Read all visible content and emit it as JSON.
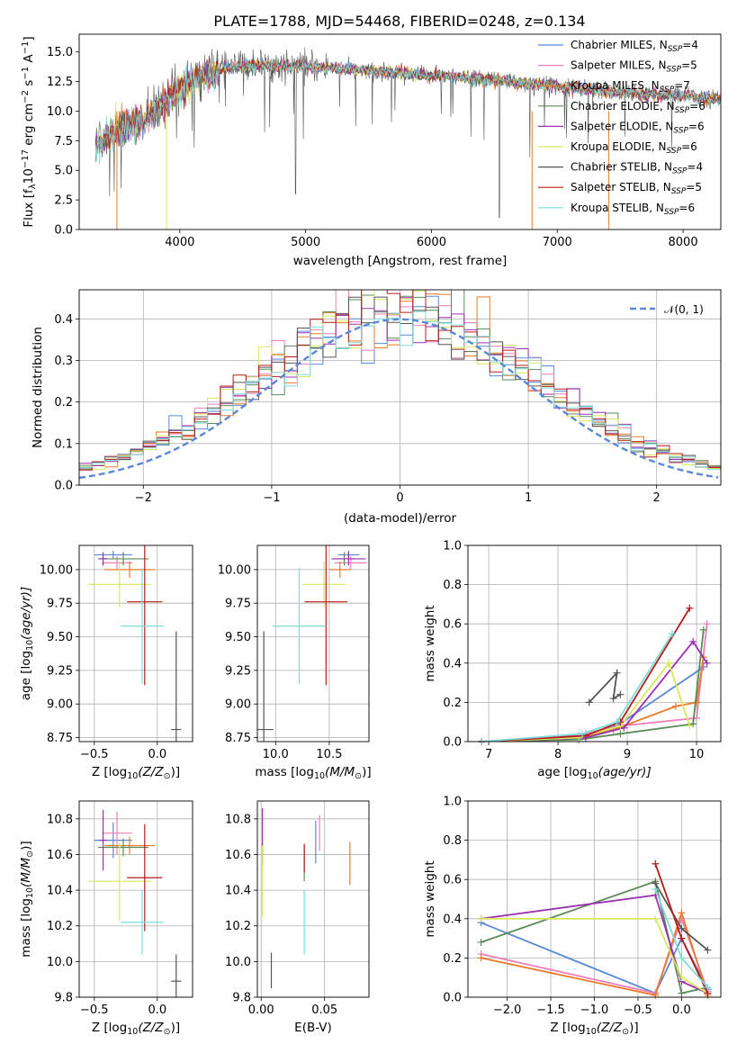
{
  "figure_title": "PLATE=1788, MJD=54468, FIBERID=0248, z=0.134",
  "colors": {
    "Chabrier MILES": "#5b87d9",
    "Salpeter MILES": "#ee7fb8",
    "Kroupa MILES": "#e87a2a",
    "Chabrier ELODIE": "#5a8a5a",
    "Salpeter ELODIE": "#9b30b0",
    "Kroupa ELODIE": "#d7e85a",
    "Chabrier STELIB": "#555555",
    "Salpeter STELIB": "#b71c1c",
    "Kroupa STELIB": "#7fdada",
    "gaussian": "#5b87d9",
    "grid": "#b0b0b0"
  },
  "chart_data": [
    {
      "id": "spectrum",
      "type": "line",
      "title": "PLATE=1788, MJD=54468, FIBERID=0248, z=0.134",
      "xlabel": "wavelength [Angstrom, rest frame]",
      "ylabel_main": "Flux [f",
      "ylabel_sub": "λ",
      "ylabel_rest": "10",
      "ylabel_exp1": "−17",
      "ylabel_mid": " erg cm",
      "ylabel_exp2": "−2",
      "ylabel_s": " s",
      "ylabel_exp3": "−1",
      "ylabel_end": " A",
      "ylabel_exp4": "−1",
      "ylabel_close": "]",
      "xlim": [
        3200,
        8300
      ],
      "ylim": [
        0,
        16.5
      ],
      "xticks": [
        "4000",
        "5000",
        "6000",
        "7000",
        "8000"
      ],
      "yticks": [
        "0.0",
        "2.5",
        "5.0",
        "7.5",
        "10.0",
        "12.5",
        "15.0"
      ],
      "grid": false,
      "legend_position": "top-right",
      "legend": [
        {
          "label": "Chabrier MILES, N",
          "sub": "SSP",
          "val": "=4"
        },
        {
          "label": "Salpeter MILES, N",
          "sub": "SSP",
          "val": "=5"
        },
        {
          "label": "Kroupa MILES, N",
          "sub": "SSP",
          "val": "=7"
        },
        {
          "label": "Chabrier ELODIE, N",
          "sub": "SSP",
          "val": "=6"
        },
        {
          "label": "Salpeter ELODIE, N",
          "sub": "SSP",
          "val": "=6"
        },
        {
          "label": "Kroupa ELODIE, N",
          "sub": "SSP",
          "val": "=6"
        },
        {
          "label": "Chabrier STELIB, N",
          "sub": "SSP",
          "val": "=4"
        },
        {
          "label": "Salpeter STELIB, N",
          "sub": "SSP",
          "val": "=5"
        },
        {
          "label": "Kroupa STELIB, N",
          "sub": "SSP",
          "val": "=6"
        }
      ],
      "continuum": {
        "x": [
          3330,
          3500,
          3650,
          3800,
          3950,
          4100,
          4300,
          4600,
          5000,
          5500,
          6000,
          6500,
          7000,
          7500,
          8000,
          8300
        ],
        "y": [
          7.2,
          8.5,
          8.8,
          10.0,
          11.5,
          12.5,
          13.5,
          13.9,
          13.8,
          13.4,
          13.0,
          12.6,
          12.1,
          11.6,
          11.3,
          11.0
        ]
      },
      "spectrum_range": [
        3330,
        8300
      ]
    },
    {
      "id": "residuals",
      "type": "area",
      "xlabel": "(data-model)/error",
      "ylabel": "Normed distribution",
      "xlim": [
        -2.5,
        2.5
      ],
      "ylim": [
        0,
        0.47
      ],
      "xticks": [
        "−2",
        "−1",
        "0",
        "1",
        "2"
      ],
      "yticks": [
        "0.0",
        "0.1",
        "0.2",
        "0.3",
        "0.4"
      ],
      "grid": true,
      "legend_position": "top-right",
      "legend_label": "𝒩(0, 1)",
      "bin_width": 0.1
    },
    {
      "id": "age-vs-Z",
      "type": "scatter",
      "xlabel_main": "Z [log",
      "xlabel_sub": "10",
      "xlabel_arg": "(Z/Z",
      "xlabel_sun": "⊙",
      "xlabel_close": ")]",
      "ylabel_main": "age  [log",
      "ylabel_sub": "10",
      "ylabel_arg": "(age/yr)]",
      "xlim": [
        -0.62,
        0.28
      ],
      "ylim": [
        8.72,
        10.18
      ],
      "xticks": [
        "−0.5",
        "0.0"
      ],
      "yticks": [
        "8.75",
        "9.00",
        "9.25",
        "9.50",
        "9.75",
        "10.00"
      ],
      "grid": true,
      "points": [
        {
          "model": "Chabrier MILES",
          "x": -0.35,
          "xerr": 0.15,
          "y": 10.11,
          "yerr": 0.03
        },
        {
          "model": "Salpeter MILES",
          "x": -0.32,
          "xerr": 0.12,
          "y": 10.05,
          "yerr": 0.05
        },
        {
          "model": "Kroupa MILES",
          "x": -0.22,
          "xerr": 0.2,
          "y": 10.0,
          "yerr": 0.06
        },
        {
          "model": "Chabrier ELODIE",
          "x": -0.27,
          "xerr": 0.2,
          "y": 10.08,
          "yerr": 0.05
        },
        {
          "model": "Salpeter ELODIE",
          "x": -0.43,
          "xerr": 0.03,
          "y": 10.08,
          "yerr": 0.05
        },
        {
          "model": "Kroupa ELODIE",
          "x": -0.3,
          "xerr": 0.25,
          "y": 9.89,
          "yerr": 0.17
        },
        {
          "model": "Chabrier STELIB",
          "x": 0.15,
          "xerr": 0.04,
          "y": 8.81,
          "yerr": 0.73
        },
        {
          "model": "Salpeter STELIB",
          "x": -0.1,
          "xerr": 0.14,
          "y": 9.76,
          "yerr": 0.62
        },
        {
          "model": "Kroupa STELIB",
          "x": -0.12,
          "xerr": 0.17,
          "y": 9.58,
          "yerr": 0.43
        }
      ]
    },
    {
      "id": "age-vs-mass",
      "type": "scatter",
      "xlabel_main": "mass [log",
      "xlabel_sub": "10",
      "xlabel_arg": "(M/M",
      "xlabel_sun": "⊙",
      "xlabel_close": ")]",
      "xlim": [
        9.83,
        10.87
      ],
      "ylim": [
        8.72,
        10.18
      ],
      "xticks": [
        "10.0",
        "10.5"
      ],
      "yticks": [
        "8.75",
        "9.00",
        "9.25",
        "9.50",
        "9.75",
        "10.00"
      ],
      "grid": true,
      "points": [
        {
          "model": "Chabrier MILES",
          "x": 10.68,
          "xerr": 0.1,
          "y": 10.11,
          "yerr": 0.03
        },
        {
          "model": "Salpeter MILES",
          "x": 10.7,
          "xerr": 0.15,
          "y": 10.05,
          "yerr": 0.05
        },
        {
          "model": "Kroupa MILES",
          "x": 10.6,
          "xerr": 0.1,
          "y": 10.0,
          "yerr": 0.06
        },
        {
          "model": "Chabrier ELODIE",
          "x": 10.64,
          "xerr": 0.1,
          "y": 10.08,
          "yerr": 0.05
        },
        {
          "model": "Salpeter ELODIE",
          "x": 10.68,
          "xerr": 0.16,
          "y": 10.08,
          "yerr": 0.05
        },
        {
          "model": "Kroupa ELODIE",
          "x": 10.45,
          "xerr": 0.2,
          "y": 9.89,
          "yerr": 0.17
        },
        {
          "model": "Chabrier STELIB",
          "x": 9.89,
          "xerr": 0.09,
          "y": 8.81,
          "yerr": 0.73
        },
        {
          "model": "Salpeter STELIB",
          "x": 10.47,
          "xerr": 0.2,
          "y": 9.76,
          "yerr": 0.62
        },
        {
          "model": "Kroupa STELIB",
          "x": 10.22,
          "xerr": 0.25,
          "y": 9.58,
          "yerr": 0.43
        }
      ]
    },
    {
      "id": "weight-vs-age",
      "type": "line",
      "xlabel_main": "age  [log",
      "xlabel_sub": "10",
      "xlabel_arg": "(age/yr)]",
      "ylabel": "mass weight",
      "xlim": [
        6.7,
        10.35
      ],
      "ylim": [
        0,
        1
      ],
      "xticks": [
        "7",
        "8",
        "9",
        "10"
      ],
      "yticks": [
        "0.0",
        "0.2",
        "0.4",
        "0.6",
        "0.8",
        "1.0"
      ],
      "grid": true,
      "series": [
        {
          "model": "Chabrier MILES",
          "x": [
            6.9,
            8.3,
            8.85,
            10.1
          ],
          "y": [
            0.0,
            0.03,
            0.08,
            0.38
          ]
        },
        {
          "model": "Salpeter MILES",
          "x": [
            6.9,
            8.4,
            8.9,
            10.0,
            10.15
          ],
          "y": [
            0.0,
            0.04,
            0.08,
            0.12,
            0.6
          ]
        },
        {
          "model": "Kroupa MILES",
          "x": [
            6.9,
            8.3,
            8.8,
            9.7,
            10.0,
            10.1
          ],
          "y": [
            0.0,
            0.02,
            0.06,
            0.18,
            0.2,
            0.43
          ]
        },
        {
          "model": "Chabrier ELODIE",
          "x": [
            6.9,
            8.3,
            8.9,
            9.95,
            10.1
          ],
          "y": [
            0.0,
            0.01,
            0.04,
            0.09,
            0.57
          ]
        },
        {
          "model": "Salpeter ELODIE",
          "x": [
            6.9,
            8.4,
            8.95,
            9.95,
            10.15
          ],
          "y": [
            0.0,
            0.02,
            0.07,
            0.51,
            0.4
          ]
        },
        {
          "model": "Kroupa ELODIE",
          "x": [
            6.9,
            8.3,
            8.9,
            9.6,
            9.9
          ],
          "y": [
            0.0,
            0.02,
            0.08,
            0.4,
            0.08
          ]
        },
        {
          "model": "Chabrier STELIB",
          "x": [
            8.45,
            8.85,
            8.8,
            8.9
          ],
          "y": [
            0.2,
            0.35,
            0.22,
            0.24
          ]
        },
        {
          "model": "Salpeter STELIB",
          "x": [
            6.9,
            8.4,
            8.9,
            9.9
          ],
          "y": [
            0.0,
            0.03,
            0.1,
            0.68
          ]
        },
        {
          "model": "Kroupa STELIB",
          "x": [
            6.9,
            8.35,
            8.85,
            9.65
          ],
          "y": [
            0.0,
            0.04,
            0.1,
            0.55
          ]
        }
      ]
    },
    {
      "id": "mass-vs-Z",
      "type": "scatter",
      "xlabel_main": "Z [log",
      "xlabel_sub": "10",
      "xlabel_arg": "(Z/Z",
      "xlabel_sun": "⊙",
      "xlabel_close": ")]",
      "ylabel_main": "mass [log",
      "ylabel_sub": "10",
      "ylabel_arg": "(M/M",
      "ylabel_sun": "⊙",
      "ylabel_close": ")]",
      "xlim": [
        -0.62,
        0.28
      ],
      "ylim": [
        9.8,
        10.9
      ],
      "xticks": [
        "−0.5",
        "0.0"
      ],
      "yticks": [
        "9.8",
        "10.0",
        "10.2",
        "10.4",
        "10.6",
        "10.8"
      ],
      "grid": true,
      "points": [
        {
          "model": "Chabrier MILES",
          "x": -0.35,
          "xerr": 0.15,
          "y": 10.68,
          "yerr": 0.1
        },
        {
          "model": "Salpeter MILES",
          "x": -0.32,
          "xerr": 0.12,
          "y": 10.72,
          "yerr": 0.12
        },
        {
          "model": "Kroupa MILES",
          "x": -0.22,
          "xerr": 0.2,
          "y": 10.65,
          "yerr": 0.05
        },
        {
          "model": "Chabrier ELODIE",
          "x": -0.27,
          "xerr": 0.2,
          "y": 10.64,
          "yerr": 0.05
        },
        {
          "model": "Salpeter ELODIE",
          "x": -0.43,
          "xerr": 0.03,
          "y": 10.68,
          "yerr": 0.17
        },
        {
          "model": "Kroupa ELODIE",
          "x": -0.3,
          "xerr": 0.25,
          "y": 10.45,
          "yerr": 0.22
        },
        {
          "model": "Chabrier STELIB",
          "x": 0.15,
          "xerr": 0.04,
          "y": 9.89,
          "yerr": 0.15
        },
        {
          "model": "Salpeter STELIB",
          "x": -0.1,
          "xerr": 0.14,
          "y": 10.47,
          "yerr": 0.3
        },
        {
          "model": "Kroupa STELIB",
          "x": -0.12,
          "xerr": 0.17,
          "y": 10.22,
          "yerr": 0.18
        }
      ]
    },
    {
      "id": "mass-vs-ebv",
      "type": "scatter",
      "xlabel": "E(B-V)",
      "xlim": [
        -0.003,
        0.085
      ],
      "ylim": [
        9.8,
        10.9
      ],
      "xticks": [
        "0.00",
        "0.05"
      ],
      "yticks": [
        "9.8",
        "10.0",
        "10.2",
        "10.4",
        "10.6",
        "10.8"
      ],
      "grid": true,
      "points": [
        {
          "model": "Chabrier MILES",
          "x": 0.043,
          "y": 10.67,
          "yerr": 0.12
        },
        {
          "model": "Salpeter MILES",
          "x": 0.046,
          "y": 10.72,
          "yerr": 0.1
        },
        {
          "model": "Kroupa MILES",
          "x": 0.07,
          "y": 10.55,
          "yerr": 0.12
        },
        {
          "model": "Chabrier ELODIE",
          "x": 0.034,
          "y": 10.55,
          "yerr": 0.1
        },
        {
          "model": "Salpeter ELODIE",
          "x": 0.001,
          "y": 10.7,
          "yerr": 0.16
        },
        {
          "model": "Kroupa ELODIE",
          "x": 0.001,
          "y": 10.45,
          "yerr": 0.2
        },
        {
          "model": "Chabrier STELIB",
          "x": 0.008,
          "y": 9.95,
          "yerr": 0.1
        },
        {
          "model": "Salpeter STELIB",
          "x": 0.034,
          "y": 10.58,
          "yerr": 0.08
        },
        {
          "model": "Kroupa STELIB",
          "x": 0.034,
          "y": 10.22,
          "yerr": 0.18
        }
      ]
    },
    {
      "id": "weight-vs-Z",
      "type": "line",
      "xlabel_main": "Z [log",
      "xlabel_sub": "10",
      "xlabel_arg": "(Z/Z",
      "xlabel_sun": "⊙",
      "xlabel_close": ")]",
      "ylabel": "mass weight",
      "xlim": [
        -2.45,
        0.45
      ],
      "ylim": [
        0,
        1
      ],
      "xticks": [
        "−2.0",
        "−1.5",
        "−1.0",
        "−0.5",
        "0.0"
      ],
      "yticks": [
        "0.0",
        "0.2",
        "0.4",
        "0.6",
        "0.8",
        "1.0"
      ],
      "grid": true,
      "series": [
        {
          "model": "Chabrier MILES",
          "x": [
            -2.3,
            -0.3,
            0.0,
            0.3
          ],
          "y": [
            0.38,
            0.02,
            0.3,
            0.04
          ]
        },
        {
          "model": "Salpeter MILES",
          "x": [
            -2.3,
            -0.3,
            0.0,
            0.3
          ],
          "y": [
            0.22,
            0.02,
            0.4,
            0.03
          ]
        },
        {
          "model": "Kroupa MILES",
          "x": [
            -2.3,
            -0.3,
            0.0,
            0.3
          ],
          "y": [
            0.2,
            0.01,
            0.43,
            0.01
          ]
        },
        {
          "model": "Chabrier ELODIE",
          "x": [
            -2.3,
            -0.3,
            0.0,
            0.3
          ],
          "y": [
            0.28,
            0.59,
            0.02,
            0.05
          ]
        },
        {
          "model": "Salpeter ELODIE",
          "x": [
            -2.3,
            -0.3,
            0.0,
            0.3
          ],
          "y": [
            0.4,
            0.52,
            0.08,
            0.02
          ]
        },
        {
          "model": "Kroupa ELODIE",
          "x": [
            -2.3,
            -0.3,
            0.0,
            0.3
          ],
          "y": [
            0.4,
            0.4,
            0.1,
            0.02
          ]
        },
        {
          "model": "Chabrier STELIB",
          "x": [
            -0.3,
            0.0,
            0.3
          ],
          "y": [
            0.58,
            0.35,
            0.24
          ]
        },
        {
          "model": "Salpeter STELIB",
          "x": [
            -0.3,
            0.0,
            0.3
          ],
          "y": [
            0.68,
            0.3,
            0.02
          ]
        },
        {
          "model": "Kroupa STELIB",
          "x": [
            -0.3,
            0.0,
            0.3
          ],
          "y": [
            0.55,
            0.2,
            0.05
          ]
        }
      ]
    }
  ]
}
